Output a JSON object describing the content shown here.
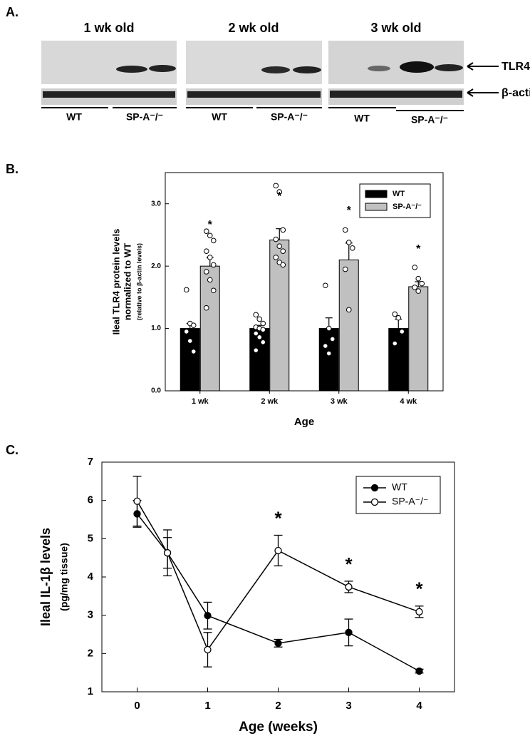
{
  "panel_labels": [
    "A.",
    "B.",
    "C."
  ],
  "blot": {
    "panels": [
      {
        "title": "1 wk old",
        "lanes": [
          "WT",
          "SP-A⁻/⁻"
        ]
      },
      {
        "title": "2 wk old",
        "lanes": [
          "WT",
          "SP-A⁻/⁻"
        ]
      },
      {
        "title": "3 wk old",
        "lanes": [
          "WT",
          "SP-A⁻/⁻"
        ]
      }
    ],
    "bands": [
      "TLR4",
      "β-actin"
    ]
  },
  "chart_data": [
    {
      "type": "bar",
      "y_label_lines": [
        "Ileal TLR4 protein levels",
        "normalized to WT",
        "(relative to β-actin levels)"
      ],
      "x_label": "Age",
      "categories": [
        "1 wk",
        "2 wk",
        "3 wk",
        "4 wk"
      ],
      "ylim": [
        0,
        3.5
      ],
      "yticks": [
        {
          "value": 0,
          "label": "0.0"
        },
        {
          "value": 1,
          "label": "1.0"
        },
        {
          "value": 2,
          "label": "2.0"
        },
        {
          "value": 3,
          "label": "3.0"
        }
      ],
      "series": [
        {
          "name": "WT",
          "color": "#000000",
          "values": [
            1.0,
            1.0,
            1.0,
            1.0
          ],
          "errors": [
            0.08,
            0.05,
            0.17,
            0.15
          ],
          "points": [
            [
              1.62,
              1.08,
              1.05,
              0.95,
              0.8,
              0.63
            ],
            [
              1.22,
              1.15,
              1.08,
              1.02,
              1.0,
              0.98,
              0.92,
              0.86,
              0.78,
              0.65
            ],
            [
              1.69,
              1.0,
              0.83,
              0.72,
              0.6
            ],
            [
              1.23,
              1.17,
              0.95,
              0.76
            ]
          ],
          "significance": [
            null,
            null,
            null,
            null
          ]
        },
        {
          "name": "SP-A⁻/⁻",
          "color": "#c0c0c0",
          "values": [
            2.0,
            2.42,
            2.1,
            1.67
          ],
          "errors": [
            0.14,
            0.18,
            0.27,
            0.08
          ],
          "points": [
            [
              2.56,
              2.49,
              2.41,
              2.24,
              2.14,
              2.02,
              1.91,
              1.78,
              1.61,
              1.33
            ],
            [
              3.29,
              3.19,
              2.58,
              2.43,
              2.32,
              2.24,
              2.14,
              2.06,
              2.02
            ],
            [
              2.58,
              2.38,
              2.29,
              1.95,
              1.3
            ],
            [
              1.98,
              1.8,
              1.72,
              1.66,
              1.6
            ]
          ],
          "significance": [
            "*",
            "*",
            "*",
            "*"
          ]
        }
      ]
    },
    {
      "type": "line",
      "y_label_lines": [
        "Ileal IL-1β levels",
        "(pg/mg tissue)"
      ],
      "x_label": "Age (weeks)",
      "x": [
        0,
        0.43,
        1,
        2,
        3,
        4
      ],
      "xlim": [
        -0.5,
        4.5
      ],
      "xticks": [
        0,
        1,
        2,
        3,
        4
      ],
      "ylim": [
        1,
        7
      ],
      "yticks": [
        1,
        2,
        3,
        4,
        5,
        6,
        7
      ],
      "series": [
        {
          "name": "WT",
          "color": "#000000",
          "marker_fill": "#000000",
          "values": [
            5.65,
            4.63,
            2.99,
            2.27,
            2.55,
            1.54
          ],
          "errors": [
            0.35,
            0.4,
            0.35,
            0.1,
            0.35,
            0.05
          ],
          "significance": [
            null,
            null,
            null,
            null,
            null,
            null
          ]
        },
        {
          "name": "SP-A⁻/⁻",
          "color": "#000000",
          "marker_fill": "#ffffff",
          "values": [
            5.98,
            4.63,
            2.1,
            4.69,
            3.74,
            3.09
          ],
          "errors": [
            0.65,
            0.6,
            0.45,
            0.4,
            0.15,
            0.15
          ],
          "significance": [
            null,
            null,
            null,
            "*",
            "*",
            "*"
          ]
        }
      ]
    }
  ]
}
